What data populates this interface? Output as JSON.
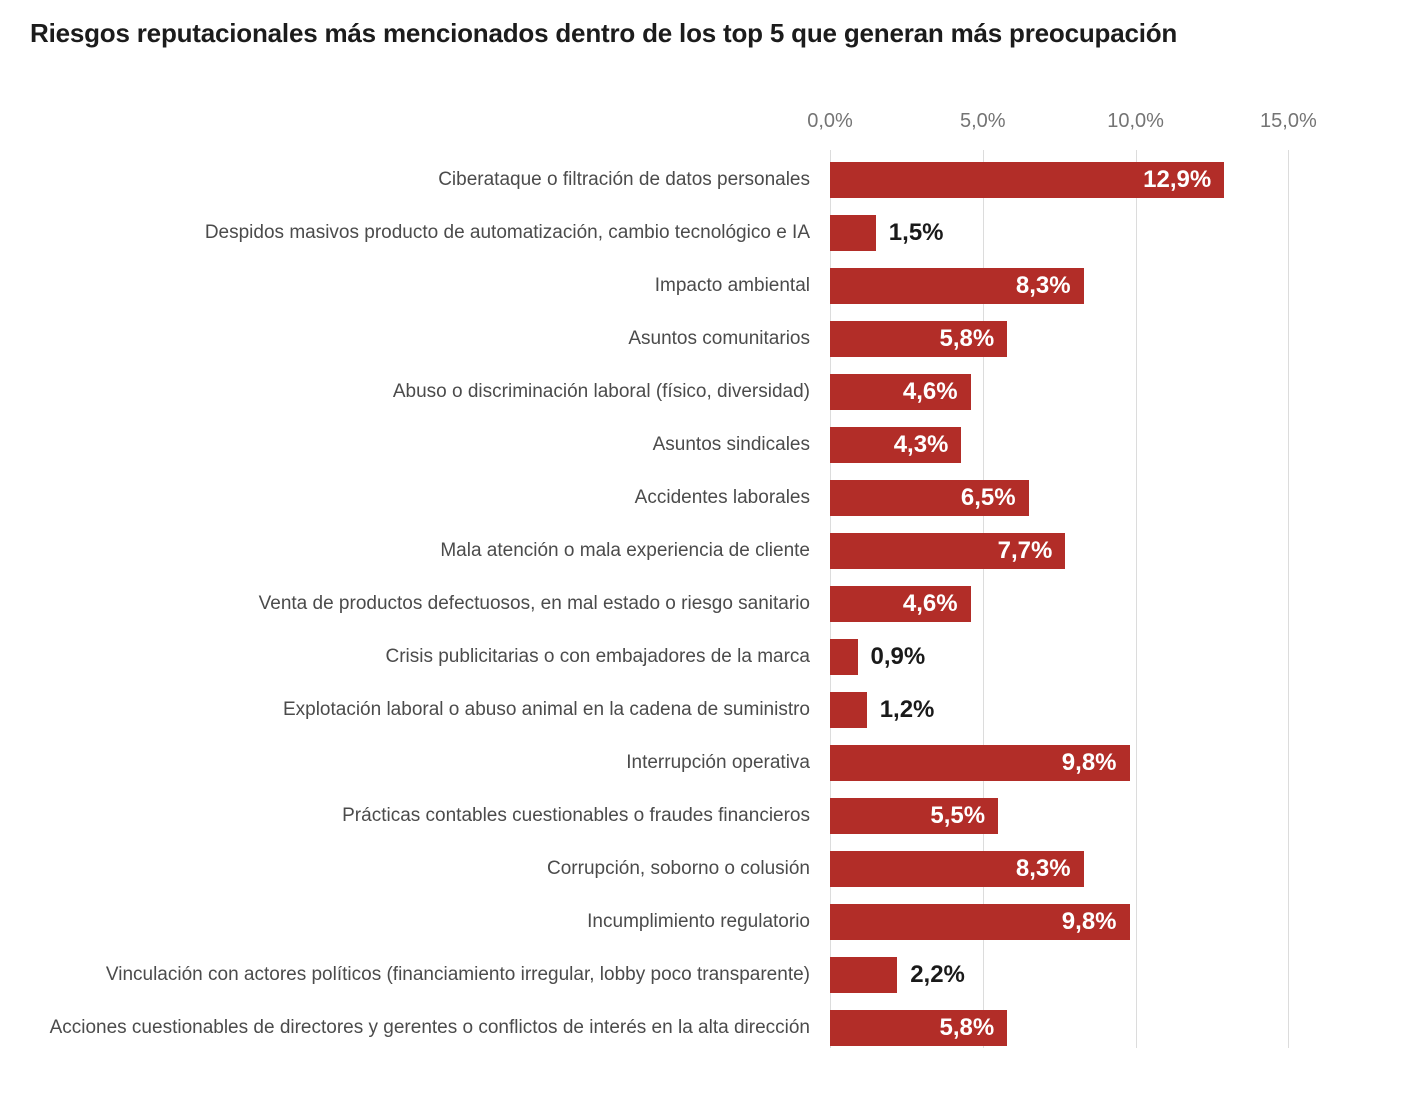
{
  "chart_data": {
    "type": "bar",
    "orientation": "horizontal",
    "title": "Riesgos reputacionales más mencionados dentro de los top 5 que generan más preocupación",
    "categories": [
      "Ciberataque o filtración de datos personales",
      "Despidos masivos producto de automatización, cambio tecnológico e IA",
      "Impacto ambiental",
      "Asuntos comunitarios",
      "Abuso o discriminación laboral (físico, diversidad)",
      "Asuntos sindicales",
      "Accidentes laborales",
      "Mala atención o mala experiencia de cliente",
      "Venta de productos defectuosos, en mal estado o riesgo sanitario",
      "Crisis publicitarias o con embajadores de la marca",
      "Explotación laboral o abuso animal en la cadena de suministro",
      "Interrupción operativa",
      "Prácticas contables cuestionables o fraudes financieros",
      "Corrupción, soborno o colusión",
      "Incumplimiento regulatorio",
      "Vinculación con actores políticos (financiamiento irregular, lobby poco transparente)",
      "Acciones cuestionables de directores y gerentes o conflictos de interés en la alta dirección"
    ],
    "values": [
      12.9,
      1.5,
      8.3,
      5.8,
      4.6,
      4.3,
      6.5,
      7.7,
      4.6,
      0.9,
      1.2,
      9.8,
      5.5,
      8.3,
      9.8,
      2.2,
      5.8
    ],
    "value_labels": [
      "12,9%",
      "1,5%",
      "8,3%",
      "5,8%",
      "4,6%",
      "4,3%",
      "6,5%",
      "7,7%",
      "4,6%",
      "0,9%",
      "1,2%",
      "9,8%",
      "5,5%",
      "8,3%",
      "9,8%",
      "2,2%",
      "5,8%"
    ],
    "x_ticks": [
      0,
      5,
      10,
      15
    ],
    "x_tick_labels": [
      "0,0%",
      "5,0%",
      "10,0%",
      "15,0%"
    ],
    "xlim": [
      0,
      15
    ],
    "grid": true,
    "legend": "none",
    "colors": {
      "bar": "#b22d28",
      "gridline": "#dcdcdc",
      "title_text": "#1c1c1c",
      "category_text": "#4b4b4b",
      "tick_text": "#747474",
      "value_inside_text": "#ffffff",
      "value_outside_text": "#1a1a1a",
      "background": "#ffffff"
    },
    "value_label_inside_min": 4.3
  }
}
